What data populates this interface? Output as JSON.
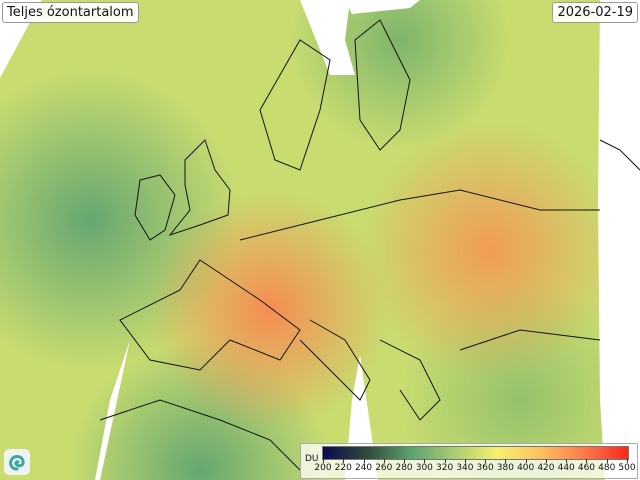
{
  "header": {
    "title": "Teljes ózontartalom",
    "date": "2026-02-19"
  },
  "legend": {
    "unit": "DU",
    "ticks": [
      "200",
      "220",
      "240",
      "260",
      "280",
      "300",
      "320",
      "340",
      "360",
      "380",
      "400",
      "420",
      "440",
      "460",
      "480",
      "500"
    ],
    "range": [
      200,
      500
    ],
    "colors": [
      "#0a0a50",
      "#2f4a3a",
      "#5aa070",
      "#a8cc70",
      "#f4f070",
      "#fcc060",
      "#fc7a4a",
      "#f8281e"
    ]
  },
  "map": {
    "variable": "total ozone column",
    "colors": {
      "low": "#5aa070",
      "mid": "#f4f070",
      "high": "#f88850"
    }
  },
  "logo": {
    "icon": "swirl-logo-icon"
  }
}
